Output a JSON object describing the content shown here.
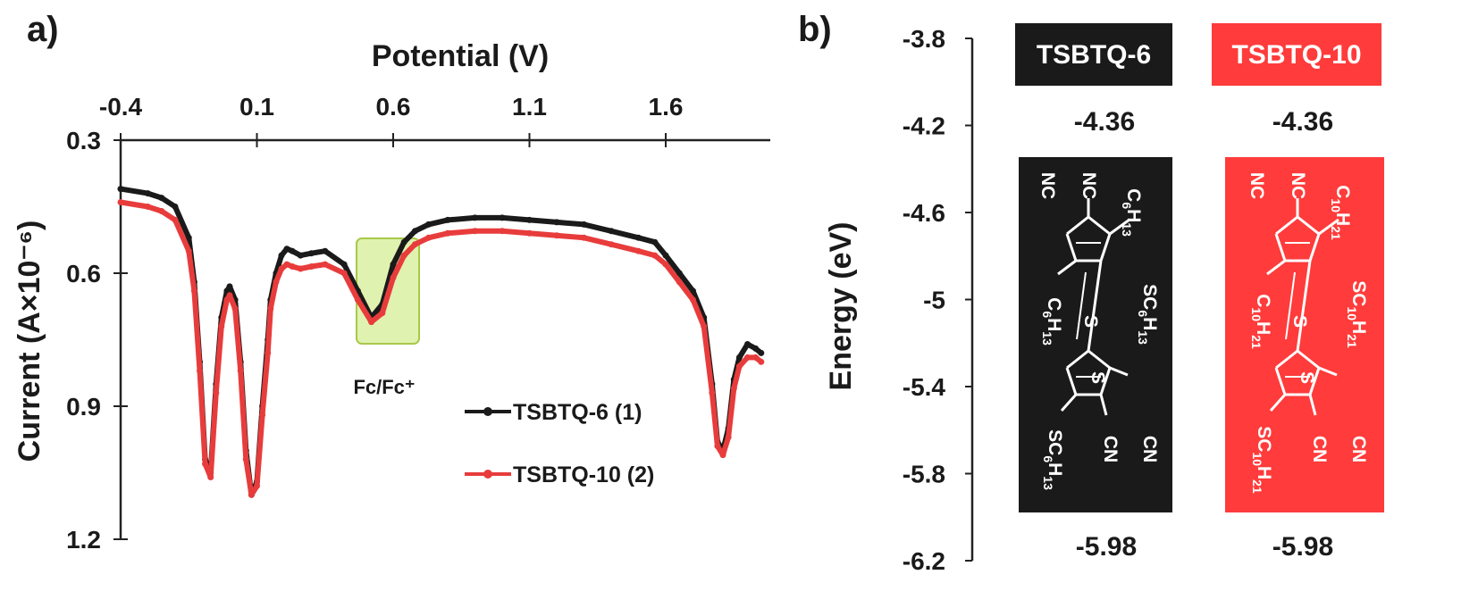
{
  "panel_a": {
    "label": "a)",
    "annotation": "Fc/Fc⁺",
    "legend": [
      {
        "label": "TSBTQ-6 (1)",
        "color": "#1a1a1a"
      },
      {
        "label": "TSBTQ-10 (2)",
        "color": "#e83c3c"
      }
    ]
  },
  "panel_b": {
    "label": "b)",
    "ylabel": "Energy (eV)",
    "y_ticks": [
      "-3.8",
      "-4.2",
      "-4.6",
      "-5",
      "-5.4",
      "-5.8",
      "-6.2"
    ],
    "compounds": [
      {
        "name": "TSBTQ-6",
        "lumo": "-4.36",
        "homo": "-5.98",
        "color": "#1a1a1a",
        "alkyl_base": "C6H13",
        "formula_parts": {
          "c": "C",
          "n1": "6",
          "h": "H",
          "n2": "13"
        }
      },
      {
        "name": "TSBTQ-10",
        "lumo": "-4.36",
        "homo": "-5.98",
        "color": "#ff3b3b",
        "alkyl_base": "C10H21",
        "formula_parts": {
          "c": "C",
          "n1": "10",
          "h": "H",
          "n2": "21"
        }
      }
    ],
    "molecule_labels": {
      "nc": "NC",
      "cn": "CN",
      "s": "S"
    }
  },
  "chart_data": [
    {
      "type": "line",
      "title": "",
      "xlabel": "Potential (V)",
      "ylabel": "Current (A×10⁻⁶)",
      "x_ticks": [
        "-0.4",
        "0.1",
        "0.6",
        "1.1",
        "1.6"
      ],
      "y_ticks": [
        "0.3",
        "0.6",
        "0.9",
        "1.2"
      ],
      "xlim": [
        -0.4,
        1.95
      ],
      "ylim": [
        0.3,
        1.2
      ],
      "y_inverted": true,
      "x_axis_position": "top",
      "legend_position": "bottom-right",
      "x": [
        -0.4,
        -0.3,
        -0.25,
        -0.2,
        -0.15,
        -0.13,
        -0.11,
        -0.09,
        -0.07,
        -0.05,
        -0.03,
        -0.01,
        0.0,
        0.02,
        0.04,
        0.06,
        0.08,
        0.1,
        0.12,
        0.14,
        0.15,
        0.17,
        0.19,
        0.21,
        0.23,
        0.26,
        0.3,
        0.35,
        0.42,
        0.47,
        0.52,
        0.56,
        0.6,
        0.64,
        0.68,
        0.73,
        0.8,
        0.9,
        1.0,
        1.1,
        1.2,
        1.3,
        1.4,
        1.5,
        1.56,
        1.6,
        1.65,
        1.7,
        1.74,
        1.77,
        1.79,
        1.81,
        1.83,
        1.85,
        1.87,
        1.9,
        1.93,
        1.95
      ],
      "series": [
        {
          "name": "TSBTQ-6 (1)",
          "color": "#1a1a1a",
          "values": [
            0.41,
            0.42,
            0.43,
            0.45,
            0.52,
            0.62,
            0.8,
            1.02,
            1.05,
            0.85,
            0.7,
            0.64,
            0.63,
            0.66,
            0.8,
            1.0,
            1.1,
            1.07,
            0.9,
            0.75,
            0.66,
            0.6,
            0.56,
            0.545,
            0.55,
            0.56,
            0.555,
            0.55,
            0.58,
            0.64,
            0.7,
            0.67,
            0.58,
            0.53,
            0.505,
            0.49,
            0.48,
            0.475,
            0.475,
            0.48,
            0.485,
            0.49,
            0.505,
            0.52,
            0.53,
            0.56,
            0.6,
            0.64,
            0.7,
            0.85,
            0.98,
            1.0,
            0.95,
            0.84,
            0.79,
            0.76,
            0.77,
            0.78
          ]
        },
        {
          "name": "TSBTQ-10 (2)",
          "color": "#e83c3c",
          "values": [
            0.44,
            0.45,
            0.46,
            0.48,
            0.55,
            0.64,
            0.82,
            1.03,
            1.06,
            0.87,
            0.72,
            0.66,
            0.65,
            0.68,
            0.82,
            1.02,
            1.1,
            1.08,
            0.92,
            0.78,
            0.68,
            0.62,
            0.59,
            0.58,
            0.585,
            0.59,
            0.585,
            0.58,
            0.6,
            0.66,
            0.71,
            0.69,
            0.61,
            0.56,
            0.535,
            0.52,
            0.51,
            0.505,
            0.505,
            0.51,
            0.515,
            0.52,
            0.535,
            0.55,
            0.56,
            0.58,
            0.62,
            0.66,
            0.72,
            0.87,
            0.99,
            1.01,
            0.97,
            0.86,
            0.81,
            0.79,
            0.79,
            0.8
          ]
        }
      ]
    }
  ]
}
